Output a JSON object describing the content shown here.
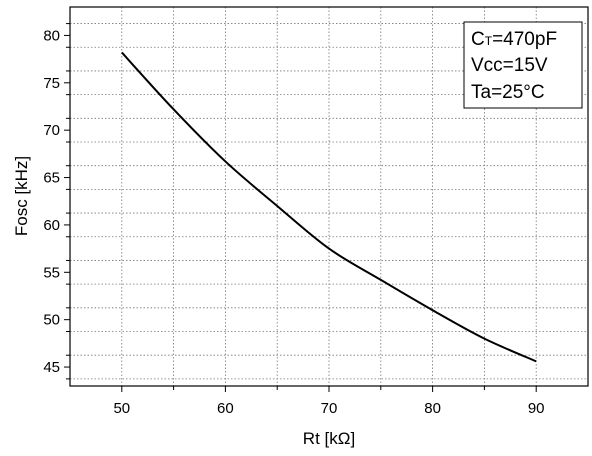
{
  "chart_data": {
    "type": "line",
    "xlabel": "Rt [kΩ]",
    "ylabel": "Fosc [kHz]",
    "xlim": [
      45,
      95
    ],
    "ylim": [
      43,
      83
    ],
    "x_ticks": [
      50,
      60,
      70,
      80,
      90
    ],
    "y_ticks": [
      45,
      50,
      55,
      60,
      65,
      70,
      75,
      80
    ],
    "x_tick_labels": [
      "50",
      "60",
      "70",
      "80",
      "90"
    ],
    "y_tick_labels": [
      "45",
      "50",
      "55",
      "60",
      "65",
      "70",
      "75",
      "80"
    ],
    "x_minor_step": 5,
    "y_minor_step": 2.5,
    "grid": true,
    "series": [
      {
        "color": "#000000",
        "x": [
          50,
          55,
          60,
          65,
          70,
          75,
          80,
          85,
          90
        ],
        "y": [
          78.2,
          72.2,
          66.7,
          62.0,
          57.5,
          54.2,
          51.0,
          48.0,
          45.6
        ]
      }
    ],
    "annotation": {
      "position": "top-right",
      "lines": [
        {
          "main": "C",
          "sub": "T",
          "rest": "=470pF"
        },
        {
          "main": "Vcc=15V",
          "sub": "",
          "rest": ""
        },
        {
          "main": "Ta=25°C",
          "sub": "",
          "rest": ""
        }
      ]
    }
  }
}
